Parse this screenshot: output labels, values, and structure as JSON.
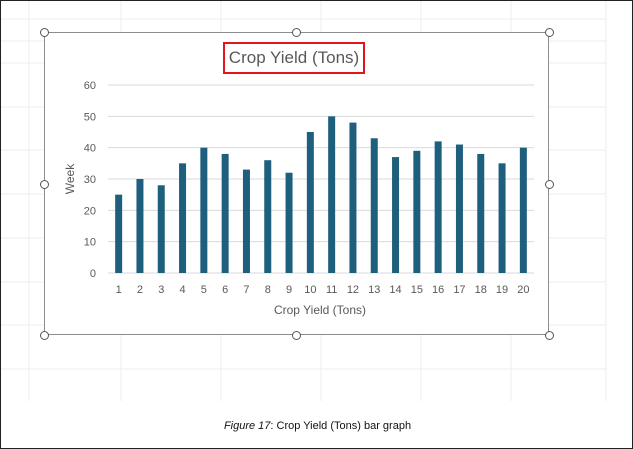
{
  "caption": {
    "figure_label": "Figure 17",
    "figure_sep": ": ",
    "text": "Crop Yield (Tons) bar graph"
  },
  "colors": {
    "bar": "#1f5f7e",
    "grid": "#d9d9d9",
    "axis_text": "#595959",
    "title_highlight": "#e0161c"
  },
  "chart_data": {
    "type": "bar",
    "title": "Crop Yield (Tons)",
    "xlabel": "Crop Yield (Tons)",
    "ylabel": "Week",
    "categories": [
      "1",
      "2",
      "3",
      "4",
      "5",
      "6",
      "7",
      "8",
      "9",
      "10",
      "11",
      "12",
      "13",
      "14",
      "15",
      "16",
      "17",
      "18",
      "19",
      "20"
    ],
    "values": [
      25,
      30,
      28,
      35,
      40,
      38,
      33,
      36,
      32,
      45,
      50,
      48,
      43,
      37,
      39,
      42,
      41,
      38,
      35,
      40
    ],
    "ylim": [
      0,
      60
    ],
    "yticks": [
      0,
      10,
      20,
      30,
      40,
      50,
      60
    ],
    "grid": true,
    "legend": "none"
  }
}
